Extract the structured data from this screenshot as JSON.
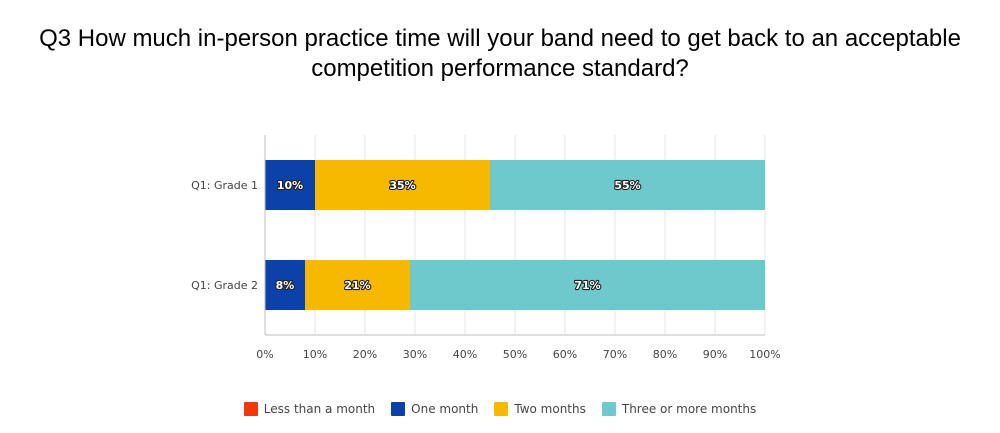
{
  "chart_data": {
    "type": "bar",
    "orientation": "horizontal",
    "stacked": true,
    "title": "Q3 How much in-person practice time will your band need to get back to an acceptable competition performance standard?",
    "categories": [
      "Q1: Grade 1",
      "Q1: Grade 2"
    ],
    "series": [
      {
        "name": "Less than a month",
        "color": "#f1380c",
        "values": [
          0,
          0
        ],
        "labels": [
          "",
          ""
        ]
      },
      {
        "name": "One month",
        "color": "#0b41a9",
        "values": [
          10,
          8
        ],
        "labels": [
          "10%",
          "8%"
        ]
      },
      {
        "name": "Two months",
        "color": "#f7b900",
        "values": [
          35,
          21
        ],
        "labels": [
          "35%",
          "21%"
        ]
      },
      {
        "name": "Three or more months",
        "color": "#6ec9cd",
        "values": [
          55,
          71
        ],
        "labels": [
          "55%",
          "71%"
        ]
      }
    ],
    "xlim": [
      0,
      100
    ],
    "x_ticks": [
      "0%",
      "10%",
      "20%",
      "30%",
      "40%",
      "50%",
      "60%",
      "70%",
      "80%",
      "90%",
      "100%"
    ],
    "grid": true,
    "legend_position": "bottom"
  }
}
